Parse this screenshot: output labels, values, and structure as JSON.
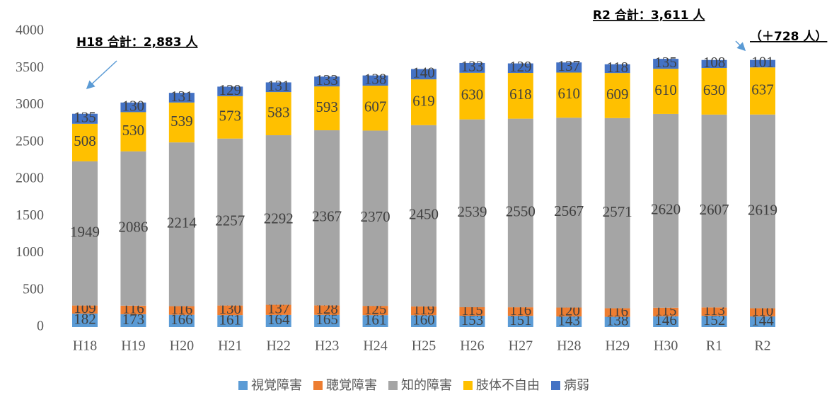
{
  "chart_data": {
    "type": "stacked_bar",
    "categories": [
      "H18",
      "H19",
      "H20",
      "H21",
      "H22",
      "H23",
      "H24",
      "H25",
      "H26",
      "H27",
      "H28",
      "H29",
      "H30",
      "R1",
      "R2"
    ],
    "series": [
      {
        "name": "視覚障害",
        "color": "#5b9bd5",
        "values": [
          182,
          173,
          166,
          161,
          164,
          165,
          161,
          160,
          153,
          151,
          143,
          138,
          146,
          152,
          144
        ]
      },
      {
        "name": "聴覚障害",
        "color": "#ed7d31",
        "values": [
          109,
          116,
          116,
          130,
          137,
          128,
          125,
          119,
          115,
          116,
          120,
          116,
          115,
          113,
          110
        ]
      },
      {
        "name": "知的障害",
        "color": "#a5a5a5",
        "values": [
          1949,
          2086,
          2214,
          2257,
          2292,
          2367,
          2370,
          2450,
          2539,
          2550,
          2567,
          2571,
          2620,
          2607,
          2619
        ]
      },
      {
        "name": "肢体不自由",
        "color": "#ffc000",
        "values": [
          508,
          530,
          539,
          573,
          583,
          593,
          607,
          619,
          630,
          618,
          610,
          609,
          610,
          630,
          637
        ]
      },
      {
        "name": "病弱",
        "color": "#4472c4",
        "values": [
          135,
          130,
          131,
          129,
          131,
          133,
          138,
          140,
          133,
          129,
          137,
          118,
          135,
          108,
          101
        ]
      }
    ],
    "ylim": [
      0,
      4000
    ],
    "yticks": [
      0,
      500,
      1000,
      1500,
      2000,
      2500,
      3000,
      3500,
      4000
    ],
    "grid": false,
    "legend": "bottom",
    "annotations": [
      "H18 合計：2,883 人",
      "R2 合計：3,611 人",
      "（＋728 人）"
    ]
  }
}
